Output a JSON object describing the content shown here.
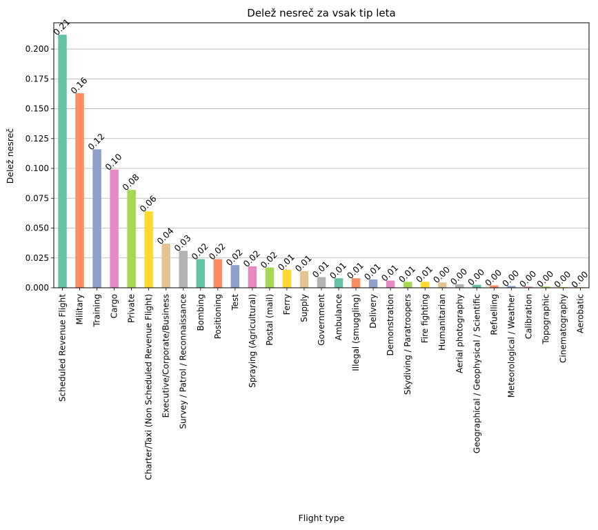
{
  "chart_data": {
    "type": "bar",
    "title": "Delež nesreč za vsak tip leta",
    "xlabel": "Flight type",
    "ylabel": "Delež nesreč",
    "ylim": [
      0,
      0.222
    ],
    "yticks": [
      "0.000",
      "0.025",
      "0.050",
      "0.075",
      "0.100",
      "0.125",
      "0.150",
      "0.175",
      "0.200"
    ],
    "grid": "y",
    "categories": [
      "Scheduled Revenue Flight",
      "Military",
      "Training",
      "Cargo",
      "Private",
      "Charter/Taxi (Non Scheduled Revenue Flight)",
      "Executive/Corporate/Business",
      "Survey / Patrol / Reconnaissance",
      "Bombing",
      "Positioning",
      "Test",
      "Spraying (Agricultural)",
      "Postal (mail)",
      "Ferry",
      "Supply",
      "Government",
      "Ambulance",
      "Illegal (smuggling)",
      "Delivery",
      "Demonstration",
      "Skydiving / Paratroopers",
      "Fire fighting",
      "Humanitarian",
      "Aerial photography",
      "Geographical / Geophysical / Scientific",
      "Refuelling",
      "Meteorological / Weather",
      "Calibration",
      "Topographic",
      "Cinematography",
      "Aerobatic"
    ],
    "values": [
      0.212,
      0.163,
      0.116,
      0.099,
      0.082,
      0.064,
      0.037,
      0.031,
      0.024,
      0.024,
      0.019,
      0.018,
      0.017,
      0.015,
      0.014,
      0.009,
      0.008,
      0.008,
      0.007,
      0.006,
      0.005,
      0.005,
      0.0045,
      0.003,
      0.0025,
      0.002,
      0.0015,
      0.001,
      0.001,
      0.0007,
      0.0005
    ],
    "data_labels": [
      "0.21",
      "0.16",
      "0.12",
      "0.10",
      "0.08",
      "0.06",
      "0.04",
      "0.03",
      "0.02",
      "0.02",
      "0.02",
      "0.02",
      "0.02",
      "0.01",
      "0.01",
      "0.01",
      "0.01",
      "0.01",
      "0.01",
      "0.01",
      "0.01",
      "0.01",
      "0.00",
      "0.00",
      "0.00",
      "0.00",
      "0.00",
      "0.00",
      "0.00",
      "0.00",
      "0.00"
    ],
    "colors": [
      "#66c2a5",
      "#fc8d62",
      "#8da0cb",
      "#e78ac3",
      "#a6d854",
      "#ffd92f",
      "#e5c494",
      "#b3b3b3"
    ]
  }
}
